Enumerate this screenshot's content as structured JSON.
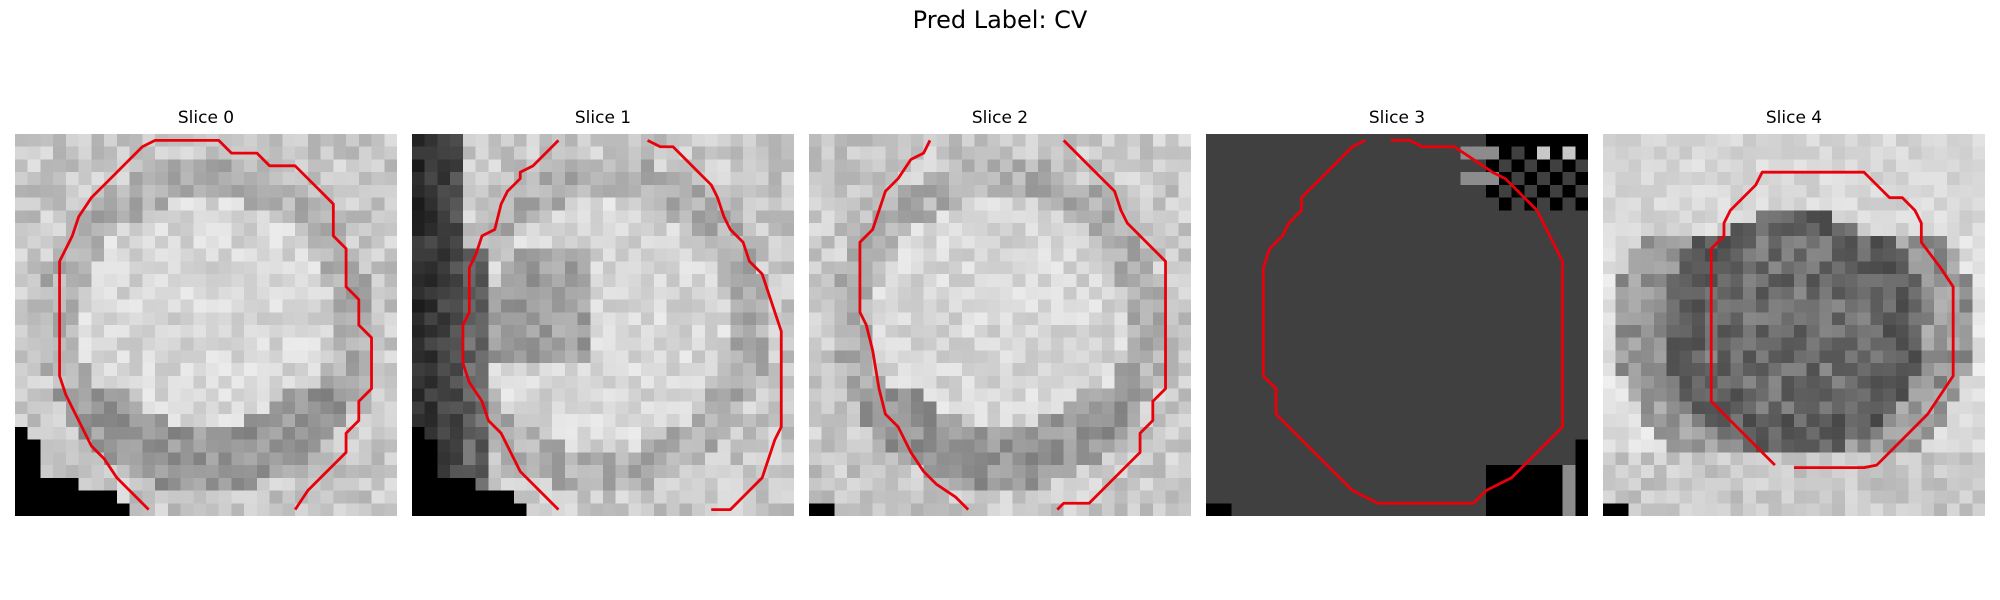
{
  "suptitle": "Pred Label: CV",
  "panels": [
    {
      "title": "Slice 0",
      "variant": "bright-cell",
      "seed": 11
    },
    {
      "title": "Slice 1",
      "variant": "bright-cell-dark-left",
      "seed": 23
    },
    {
      "title": "Slice 2",
      "variant": "bright-cell",
      "seed": 37
    },
    {
      "title": "Slice 3",
      "variant": "flat-dark",
      "seed": 41
    },
    {
      "title": "Slice 4",
      "variant": "dark-cell",
      "seed": 53
    }
  ],
  "colors": {
    "contour": "#e8000b",
    "background": "#ffffff"
  }
}
